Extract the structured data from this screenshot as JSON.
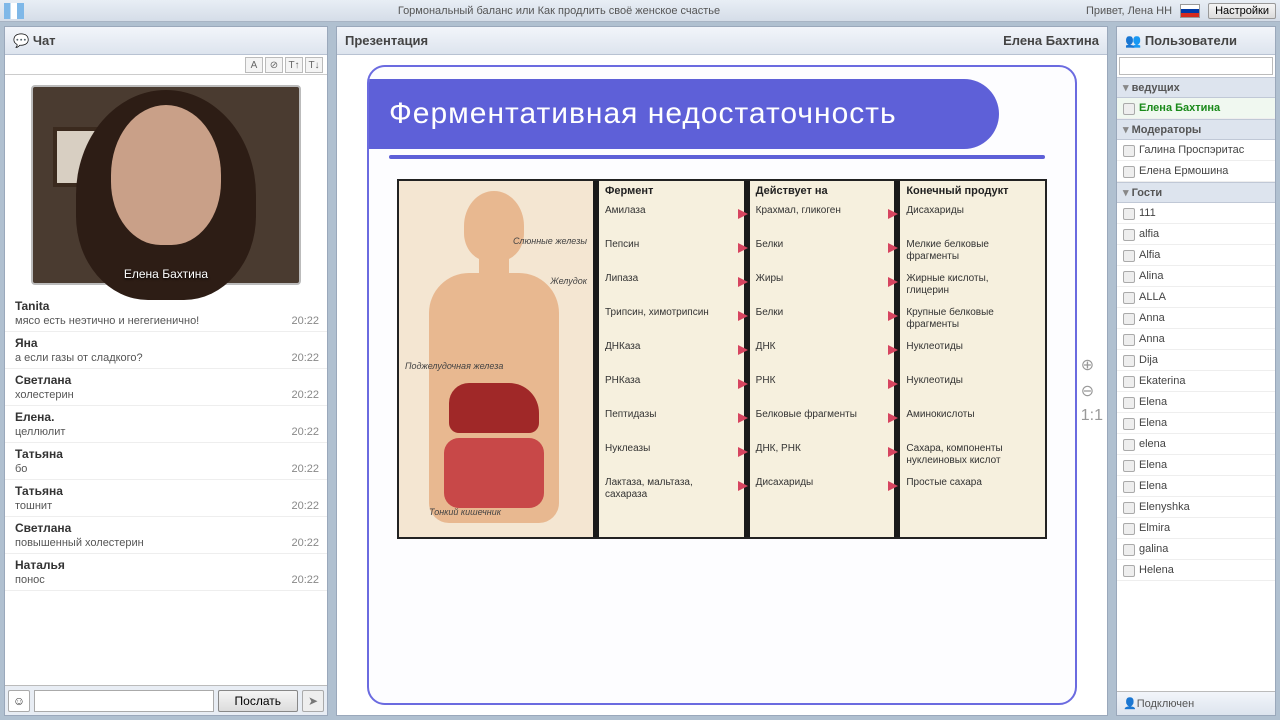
{
  "topbar": {
    "title": "Гормональный баланс или  Как продлить своё женское счастье",
    "greeting": "Привет, Лена НН",
    "settings_label": "Настройки"
  },
  "chat": {
    "header": "Чат",
    "video_caption": "Елена Бахтина",
    "send_label": "Послать",
    "input_placeholder": "",
    "tool_icons": [
      "A",
      "⊘",
      "T↑",
      "T↓"
    ],
    "messages": [
      {
        "author": "Tanita",
        "text": "мясо есть неэтично и негегиенично!",
        "time": "20:22"
      },
      {
        "author": "Яна",
        "text": "а если газы от сладкого?",
        "time": "20:22"
      },
      {
        "author": "Светлана",
        "text": "холестерин",
        "time": "20:22"
      },
      {
        "author": "Елена.",
        "text": "целлюлит",
        "time": "20:22"
      },
      {
        "author": "Татьяна",
        "text": "бо",
        "time": "20:22"
      },
      {
        "author": "Татьяна",
        "text": "тошнит",
        "time": "20:22"
      },
      {
        "author": "Светлана",
        "text": "повышенный холестерин",
        "time": "20:22"
      },
      {
        "author": "Наталья",
        "text": "понос",
        "time": "20:22"
      }
    ]
  },
  "presentation": {
    "header": "Презентация",
    "presenter": "Елена Бахтина",
    "slide_title": "Ферментативная недостаточность",
    "anatomy_labels": {
      "salivary": "Слюнные железы",
      "stomach": "Желудок",
      "pancreas": "Поджелудочная железа",
      "intestine": "Тонкий кишечник"
    },
    "columns": {
      "enzyme_header": "Фермент",
      "acts_header": "Действует на",
      "product_header": "Конечный продукт",
      "rows": [
        {
          "enzyme": "Амилаза",
          "acts": "Крахмал, гликоген",
          "product": "Дисахариды"
        },
        {
          "enzyme": "Пепсин",
          "acts": "Белки",
          "product": "Мелкие белковые фрагменты"
        },
        {
          "enzyme": "Липаза",
          "acts": "Жиры",
          "product": "Жирные кислоты, глицерин"
        },
        {
          "enzyme": "Трипсин, химотрипсин",
          "acts": "Белки",
          "product": "Крупные белковые фрагменты"
        },
        {
          "enzyme": "ДНКаза",
          "acts": "ДНК",
          "product": "Нуклеотиды"
        },
        {
          "enzyme": "РНКаза",
          "acts": "РНК",
          "product": "Нуклеотиды"
        },
        {
          "enzyme": "Пептидазы",
          "acts": "Белковые фрагменты",
          "product": "Аминокислоты"
        },
        {
          "enzyme": "Нуклеазы",
          "acts": "ДНК, РНК",
          "product": "Сахара, компоненты нуклеиновых кислот"
        },
        {
          "enzyme": "Лактаза, мальтаза, сахараза",
          "acts": "Дисахариды",
          "product": "Простые сахара"
        }
      ]
    },
    "zoom_icons": [
      "⊕",
      "⊖",
      "1:1"
    ]
  },
  "users": {
    "header": "Пользователи",
    "footer": "Подключен",
    "groups": [
      {
        "name": "ведущих",
        "members": [
          {
            "name": "Елена Бахтина",
            "host": true
          }
        ]
      },
      {
        "name": "Модераторы",
        "members": [
          {
            "name": "Галина Проспэритас"
          },
          {
            "name": "Елена Ермошина"
          }
        ]
      },
      {
        "name": "Гости",
        "members": [
          {
            "name": "111"
          },
          {
            "name": "alfia"
          },
          {
            "name": "Alfia"
          },
          {
            "name": "Alina"
          },
          {
            "name": "ALLA"
          },
          {
            "name": "Anna"
          },
          {
            "name": "Anna"
          },
          {
            "name": "Dija"
          },
          {
            "name": "Ekaterina"
          },
          {
            "name": "Elena"
          },
          {
            "name": "Elena"
          },
          {
            "name": "elena"
          },
          {
            "name": "Elena"
          },
          {
            "name": "Elena"
          },
          {
            "name": "Elenyshka"
          },
          {
            "name": "Elmira"
          },
          {
            "name": "galina"
          },
          {
            "name": "Helena"
          }
        ]
      }
    ]
  },
  "colors": {
    "slide_accent": "#5e60d8",
    "arrow": "#d64560",
    "panel_border": "#9aa8bb"
  }
}
